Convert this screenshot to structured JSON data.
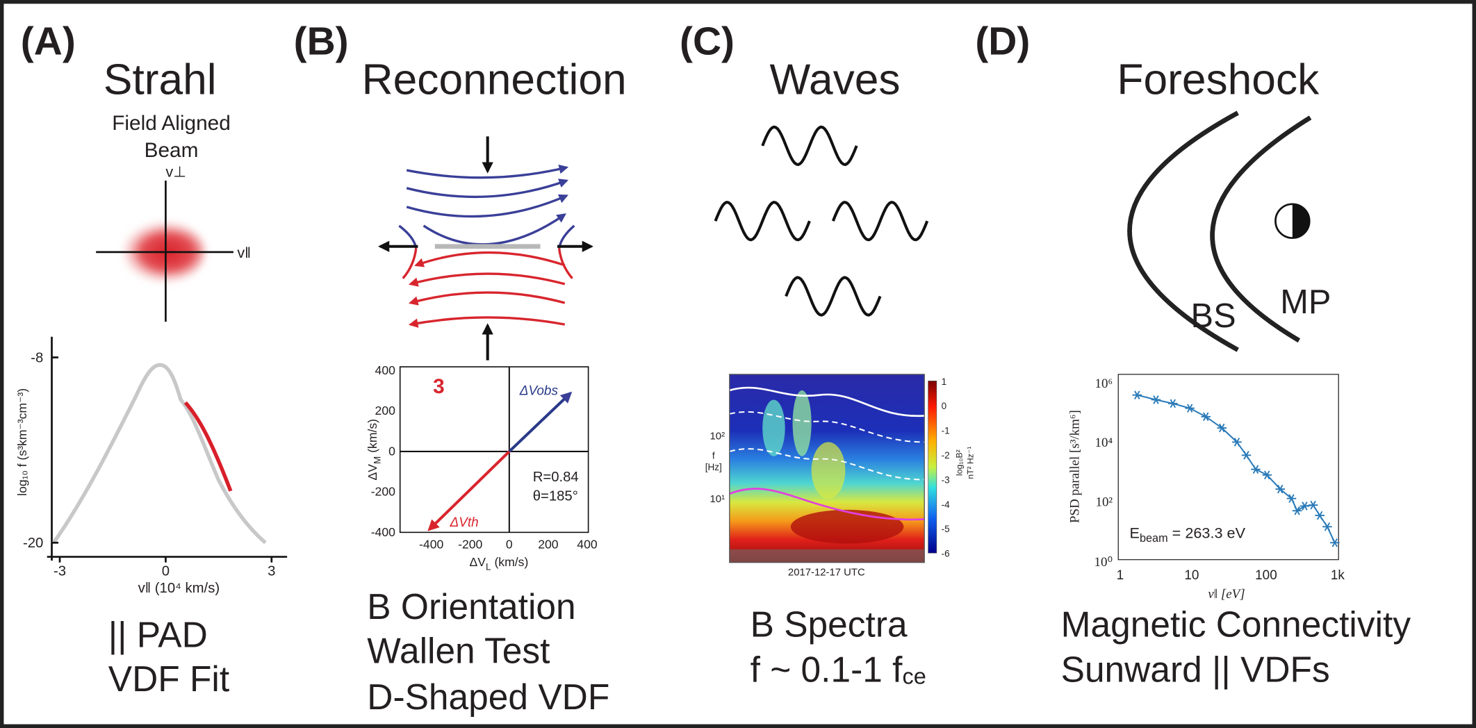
{
  "panels": [
    {
      "label": "(A)",
      "title": "Strahl",
      "subtitle": [
        "Field Aligned",
        "Beam"
      ],
      "axes": {
        "perp": "v⊥",
        "par": "v‖"
      },
      "plot": {
        "ylabel": "log₁₀ f (s³km⁻³cm⁻³)",
        "yticks": [
          -8,
          -20
        ],
        "xticks": [
          -3,
          0,
          3
        ],
        "xlabel": "v‖ (10⁴ km/s)"
      },
      "captions": [
        "|| PAD",
        "VDF Fit"
      ]
    },
    {
      "label": "(B)",
      "title": "Reconnection",
      "plot": {
        "marker": "3",
        "vobs": "ΔVobs",
        "vth": "ΔVth",
        "r": "R=0.84",
        "theta": "θ=185°",
        "yticks": [
          400,
          200,
          0,
          -200,
          -400
        ],
        "xticks": [
          -400,
          -200,
          0,
          200,
          400
        ],
        "ylabel": [
          "ΔV",
          "M",
          " (km/s)"
        ],
        "xlabel": [
          "ΔV",
          "L",
          " (km/s)"
        ]
      },
      "captions": [
        "B Orientation",
        "Wallen Test",
        "D-Shaped VDF"
      ]
    },
    {
      "label": "(C)",
      "title": "Waves",
      "plot": {
        "ylabel": [
          "f",
          "[Hz]"
        ],
        "yticks": [
          "10²",
          "10¹"
        ],
        "cbticks": [
          1,
          0,
          -1,
          -2,
          -3,
          -4,
          -5,
          -6
        ],
        "cblabel": [
          "log₁₀B²",
          "nT² Hz⁻¹"
        ],
        "xlabel": "2017-12-17 UTC"
      },
      "captions": [
        [
          "B Spectra"
        ],
        [
          "f ~ 0.1-1 f",
          "ce"
        ]
      ]
    },
    {
      "label": "(D)",
      "title": "Foreshock",
      "bs": "BS",
      "mp": "MP",
      "plot": {
        "ylabel": "PSD parallel [s³/km⁶]",
        "yticks": [
          "10⁶",
          "10⁴",
          "10²",
          "10⁰"
        ],
        "xticks": [
          "1",
          "10",
          "100",
          "1k"
        ],
        "xlabel": "v‖ [eV]",
        "energy": [
          "E",
          "beam",
          " = 263.3 eV"
        ]
      },
      "captions": [
        "Magnetic Connectivity",
        "Sunward || VDFs"
      ]
    }
  ]
}
